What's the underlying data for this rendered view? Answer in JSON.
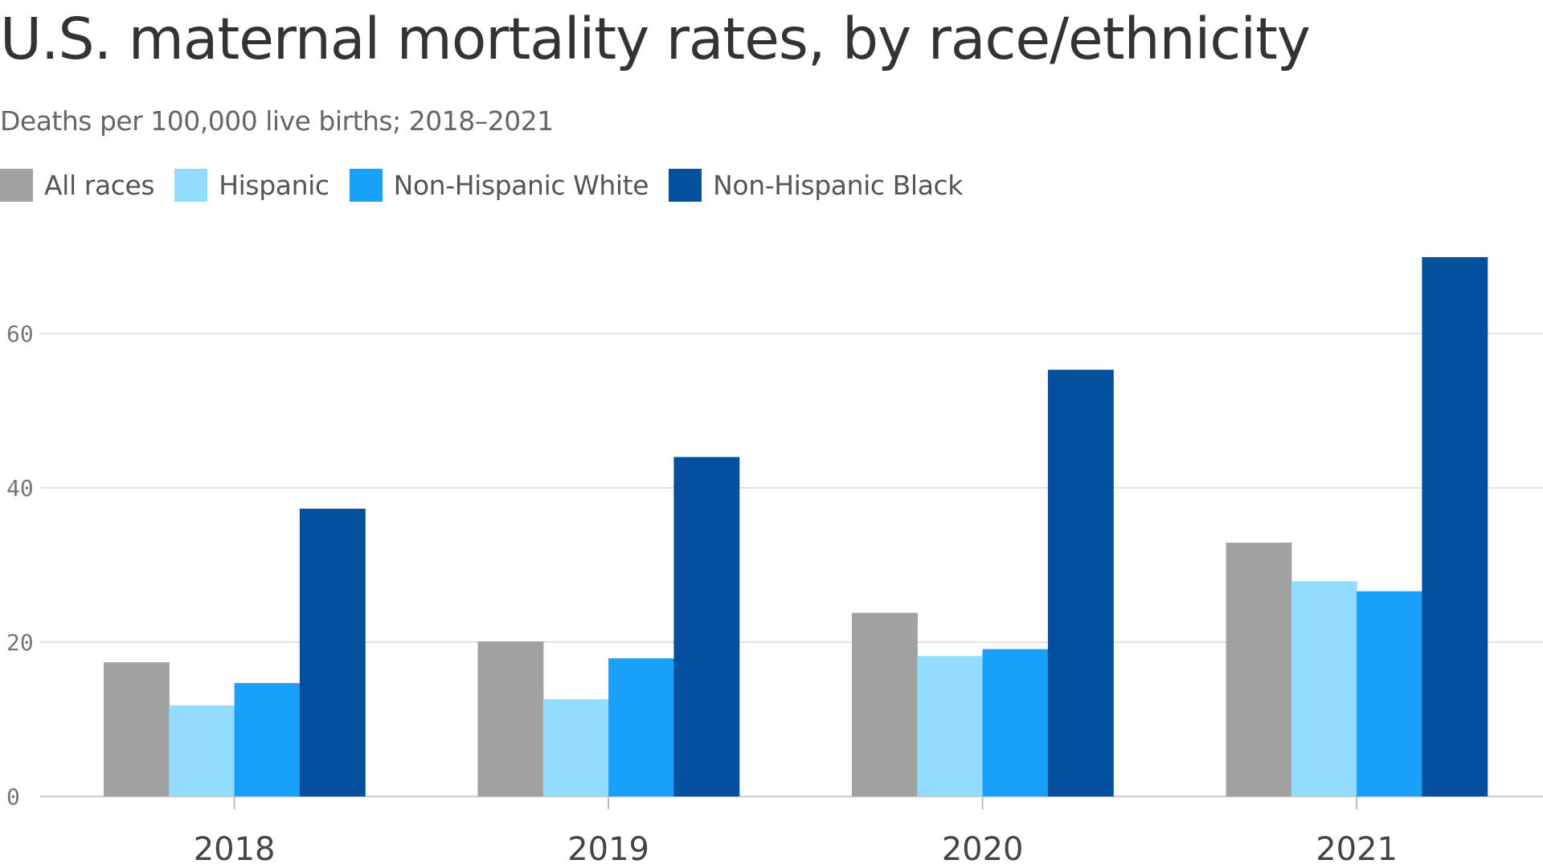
{
  "chart_data": {
    "type": "bar",
    "title": "U.S. maternal mortality rates, by race/ethnicity",
    "subtitle": "Deaths per 100,000 live births; 2018–2021",
    "xlabel": "",
    "ylabel": "",
    "categories": [
      "2018",
      "2019",
      "2020",
      "2021"
    ],
    "series": [
      {
        "name": "All races",
        "color": "#a0a1a0",
        "values": [
          17.4,
          20.1,
          23.8,
          32.9
        ]
      },
      {
        "name": "Hispanic",
        "color": "#91dcff",
        "values": [
          11.8,
          12.6,
          18.2,
          27.9
        ]
      },
      {
        "name": "Non-Hispanic White",
        "color": "#18a0fb",
        "values": [
          14.7,
          17.9,
          19.1,
          26.6
        ]
      },
      {
        "name": "Non-Hispanic Black",
        "color": "#04509e",
        "values": [
          37.3,
          44.0,
          55.3,
          69.9
        ]
      }
    ],
    "ylim": [
      0,
      75
    ],
    "yticks": [
      0,
      20,
      40,
      60
    ],
    "grid": true,
    "legend_position": "top-left"
  }
}
